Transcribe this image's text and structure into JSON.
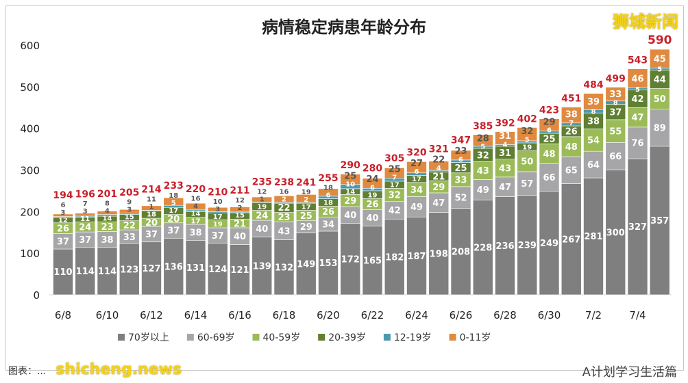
{
  "chart_data": {
    "type": "bar",
    "stacked": true,
    "title": "病情稳定病患年龄分布",
    "xlabel": "",
    "ylabel": "",
    "ylim": [
      0,
      600
    ],
    "yticks": [
      0,
      100,
      200,
      300,
      400,
      500,
      600
    ],
    "grid": false,
    "legend": "bottom",
    "categories": [
      "6/8",
      "6/9",
      "6/10",
      "6/11",
      "6/12",
      "6/13",
      "6/14",
      "6/15",
      "6/16",
      "6/17",
      "6/18",
      "6/19",
      "6/20",
      "6/21",
      "6/22",
      "6/23",
      "6/24",
      "6/25",
      "6/26",
      "6/27",
      "6/28",
      "6/29",
      "6/30",
      "7/1",
      "7/2",
      "7/3",
      "7/4",
      "7/5"
    ],
    "tick_labels": [
      "6/8",
      "6/10",
      "6/12",
      "6/14",
      "6/16",
      "6/18",
      "6/20",
      "6/22",
      "6/24",
      "6/26",
      "6/28",
      "6/30",
      "7/2",
      "7/4"
    ],
    "series": [
      {
        "name": "70岁以上",
        "color": "#7f7f80",
        "values": [
          110,
          114,
          114,
          123,
          127,
          136,
          131,
          124,
          121,
          139,
          132,
          149,
          153,
          172,
          165,
          182,
          187,
          198,
          208,
          228,
          236,
          239,
          249,
          267,
          281,
          300,
          327,
          357
        ]
      },
      {
        "name": "60-69岁",
        "color": "#a6a6a8",
        "values": [
          37,
          37,
          38,
          33,
          37,
          37,
          38,
          37,
          40,
          40,
          43,
          29,
          34,
          40,
          40,
          42,
          49,
          47,
          52,
          49,
          47,
          57,
          66,
          65,
          64,
          66,
          76,
          89
        ]
      },
      {
        "name": "40-59岁",
        "color": "#9bbb59",
        "values": [
          26,
          24,
          23,
          22,
          20,
          20,
          17,
          19,
          21,
          24,
          23,
          25,
          26,
          29,
          26,
          32,
          34,
          29,
          33,
          43,
          43,
          50,
          48,
          48,
          54,
          55,
          47,
          50
        ]
      },
      {
        "name": "20-39岁",
        "color": "#5f7f32",
        "values": [
          12,
          11,
          14,
          15,
          18,
          17,
          14,
          17,
          15,
          19,
          22,
          17,
          18,
          14,
          19,
          17,
          17,
          21,
          25,
          32,
          31,
          19,
          25,
          26,
          38,
          37,
          42,
          44
        ]
      },
      {
        "name": "12-19岁",
        "color": "#4a9aae",
        "values": [
          3,
          3,
          4,
          3,
          1,
          5,
          4,
          3,
          2,
          1,
          2,
          2,
          6,
          10,
          6,
          7,
          6,
          4,
          6,
          5,
          4,
          5,
          6,
          7,
          8,
          8,
          5,
          5
        ]
      },
      {
        "name": "0-11岁",
        "color": "#e08a40",
        "values": [
          6,
          7,
          8,
          9,
          11,
          18,
          16,
          10,
          12,
          12,
          16,
          19,
          18,
          25,
          24,
          25,
          27,
          22,
          23,
          28,
          31,
          32,
          29,
          38,
          39,
          33,
          46,
          45
        ]
      }
    ],
    "totals": [
      194,
      196,
      201,
      205,
      214,
      233,
      220,
      210,
      211,
      235,
      238,
      241,
      255,
      290,
      280,
      305,
      320,
      321,
      347,
      385,
      392,
      402,
      423,
      451,
      484,
      499,
      543,
      590
    ],
    "total_color": "#c8202a"
  },
  "watermarks": {
    "top": "狮城新闻",
    "bottom": "shicheng.news",
    "account": "A计划学习生活篇"
  },
  "source": "图表：..."
}
